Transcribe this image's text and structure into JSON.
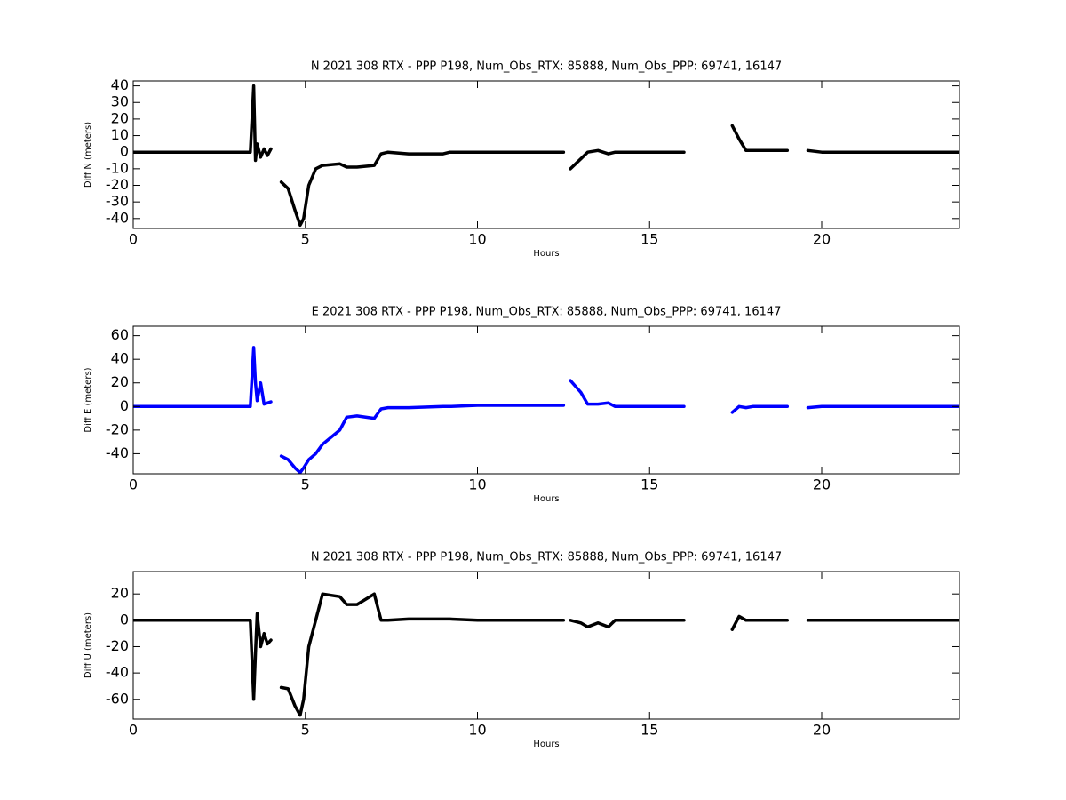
{
  "chart_data": [
    {
      "type": "line",
      "title": "N 2021 308 RTX - PPP  P198, Num_Obs_RTX: 85888, Num_Obs_PPP: 69741, 16147",
      "xlabel": "Hours",
      "ylabel": "Diff N (meters)",
      "color": "#000000",
      "xlim": [
        0,
        24
      ],
      "xticks": [
        0,
        5,
        10,
        15,
        20
      ],
      "ylim": [
        -46,
        43
      ],
      "yticks": [
        -40,
        -30,
        -20,
        -10,
        0,
        10,
        20,
        30,
        40
      ],
      "x": [
        0,
        1,
        1.7,
        1.8,
        2.5,
        2.6,
        3.4,
        3.5,
        3.55,
        3.6,
        3.7,
        3.8,
        3.9,
        4.0,
        4.1,
        4.3,
        4.5,
        4.7,
        4.85,
        4.95,
        5.1,
        5.3,
        5.5,
        6.0,
        6.2,
        6.5,
        7.0,
        7.2,
        7.4,
        8,
        9,
        9.2,
        10,
        11,
        12,
        12.5,
        12.6,
        12.7,
        13.0,
        13.2,
        13.5,
        13.8,
        14.0,
        15,
        16,
        16.5,
        17.4,
        17.6,
        17.8,
        18,
        19,
        19.3,
        19.6,
        20,
        22,
        24
      ],
      "values": [
        0,
        0,
        0,
        0,
        0,
        0,
        0,
        40,
        -5,
        5,
        -3,
        2,
        -2,
        2,
        null,
        -18,
        -22,
        -35,
        -44,
        -40,
        -20,
        -10,
        -8,
        -7,
        -9,
        -9,
        -8,
        -1,
        0,
        -1,
        -1,
        0,
        0,
        0,
        0,
        0,
        null,
        -10,
        -4,
        0,
        1,
        -1,
        0,
        0,
        0,
        null,
        16,
        8,
        1,
        1,
        1,
        null,
        1,
        0,
        0,
        0
      ]
    },
    {
      "type": "line",
      "title": "E 2021 308 RTX - PPP  P198, Num_Obs_RTX: 85888, Num_Obs_PPP: 69741, 16147",
      "xlabel": "Hours",
      "ylabel": "Diff E (meters)",
      "color": "#0000ff",
      "xlim": [
        0,
        24
      ],
      "xticks": [
        0,
        5,
        10,
        15,
        20
      ],
      "ylim": [
        -57,
        68
      ],
      "yticks": [
        -40,
        -20,
        0,
        20,
        40,
        60
      ],
      "x": [
        0,
        1,
        1.7,
        1.8,
        2.5,
        2.6,
        3.4,
        3.5,
        3.55,
        3.6,
        3.7,
        3.8,
        3.9,
        4.0,
        4.1,
        4.3,
        4.5,
        4.7,
        4.85,
        4.95,
        5.1,
        5.3,
        5.5,
        6.0,
        6.2,
        6.5,
        7.0,
        7.2,
        7.4,
        8,
        9,
        9.2,
        10,
        11,
        12,
        12.5,
        12.6,
        12.7,
        13.0,
        13.2,
        13.5,
        13.8,
        14.0,
        15,
        16,
        16.5,
        17.4,
        17.6,
        17.8,
        18,
        19,
        19.3,
        19.6,
        20,
        22,
        24
      ],
      "values": [
        0,
        0,
        0,
        0,
        0,
        0,
        0,
        50,
        20,
        5,
        20,
        2,
        3,
        4,
        null,
        -42,
        -45,
        -52,
        -56,
        -52,
        -45,
        -40,
        -32,
        -20,
        -9,
        -8,
        -10,
        -2,
        -1,
        -1,
        0,
        0,
        1,
        1,
        1,
        1,
        null,
        22,
        12,
        2,
        2,
        3,
        0,
        0,
        0,
        null,
        -5,
        0,
        -1,
        0,
        0,
        null,
        -1,
        0,
        0,
        0
      ]
    },
    {
      "type": "line",
      "title": "N 2021 308 RTX - PPP  P198, Num_Obs_RTX: 85888, Num_Obs_PPP: 69741, 16147",
      "xlabel": "Hours",
      "ylabel": "Diff U (meters)",
      "color": "#000000",
      "xlim": [
        0,
        24
      ],
      "xticks": [
        0,
        5,
        10,
        15,
        20
      ],
      "ylim": [
        -75,
        37
      ],
      "yticks": [
        -60,
        -40,
        -20,
        0,
        20
      ],
      "x": [
        0,
        1,
        1.7,
        1.8,
        2.5,
        2.6,
        3.4,
        3.5,
        3.55,
        3.6,
        3.7,
        3.8,
        3.9,
        4.0,
        4.1,
        4.3,
        4.5,
        4.7,
        4.85,
        4.95,
        5.1,
        5.3,
        5.5,
        6.0,
        6.2,
        6.5,
        7.0,
        7.2,
        7.4,
        8,
        9,
        9.2,
        10,
        11,
        12,
        12.5,
        12.6,
        12.7,
        13.0,
        13.2,
        13.5,
        13.8,
        14.0,
        15,
        16,
        16.5,
        17.4,
        17.6,
        17.8,
        18,
        19,
        19.3,
        19.6,
        20,
        22,
        24
      ],
      "values": [
        0,
        0,
        0,
        0,
        0,
        0,
        0,
        -60,
        -25,
        5,
        -20,
        -10,
        -18,
        -15,
        null,
        -51,
        -52,
        -65,
        -72,
        -60,
        -20,
        0,
        20,
        18,
        12,
        12,
        20,
        0,
        0,
        1,
        1,
        1,
        0,
        0,
        0,
        0,
        null,
        0,
        -2,
        -5,
        -2,
        -5,
        0,
        0,
        0,
        null,
        -7,
        3,
        0,
        0,
        0,
        null,
        0,
        0,
        0,
        0
      ]
    }
  ]
}
